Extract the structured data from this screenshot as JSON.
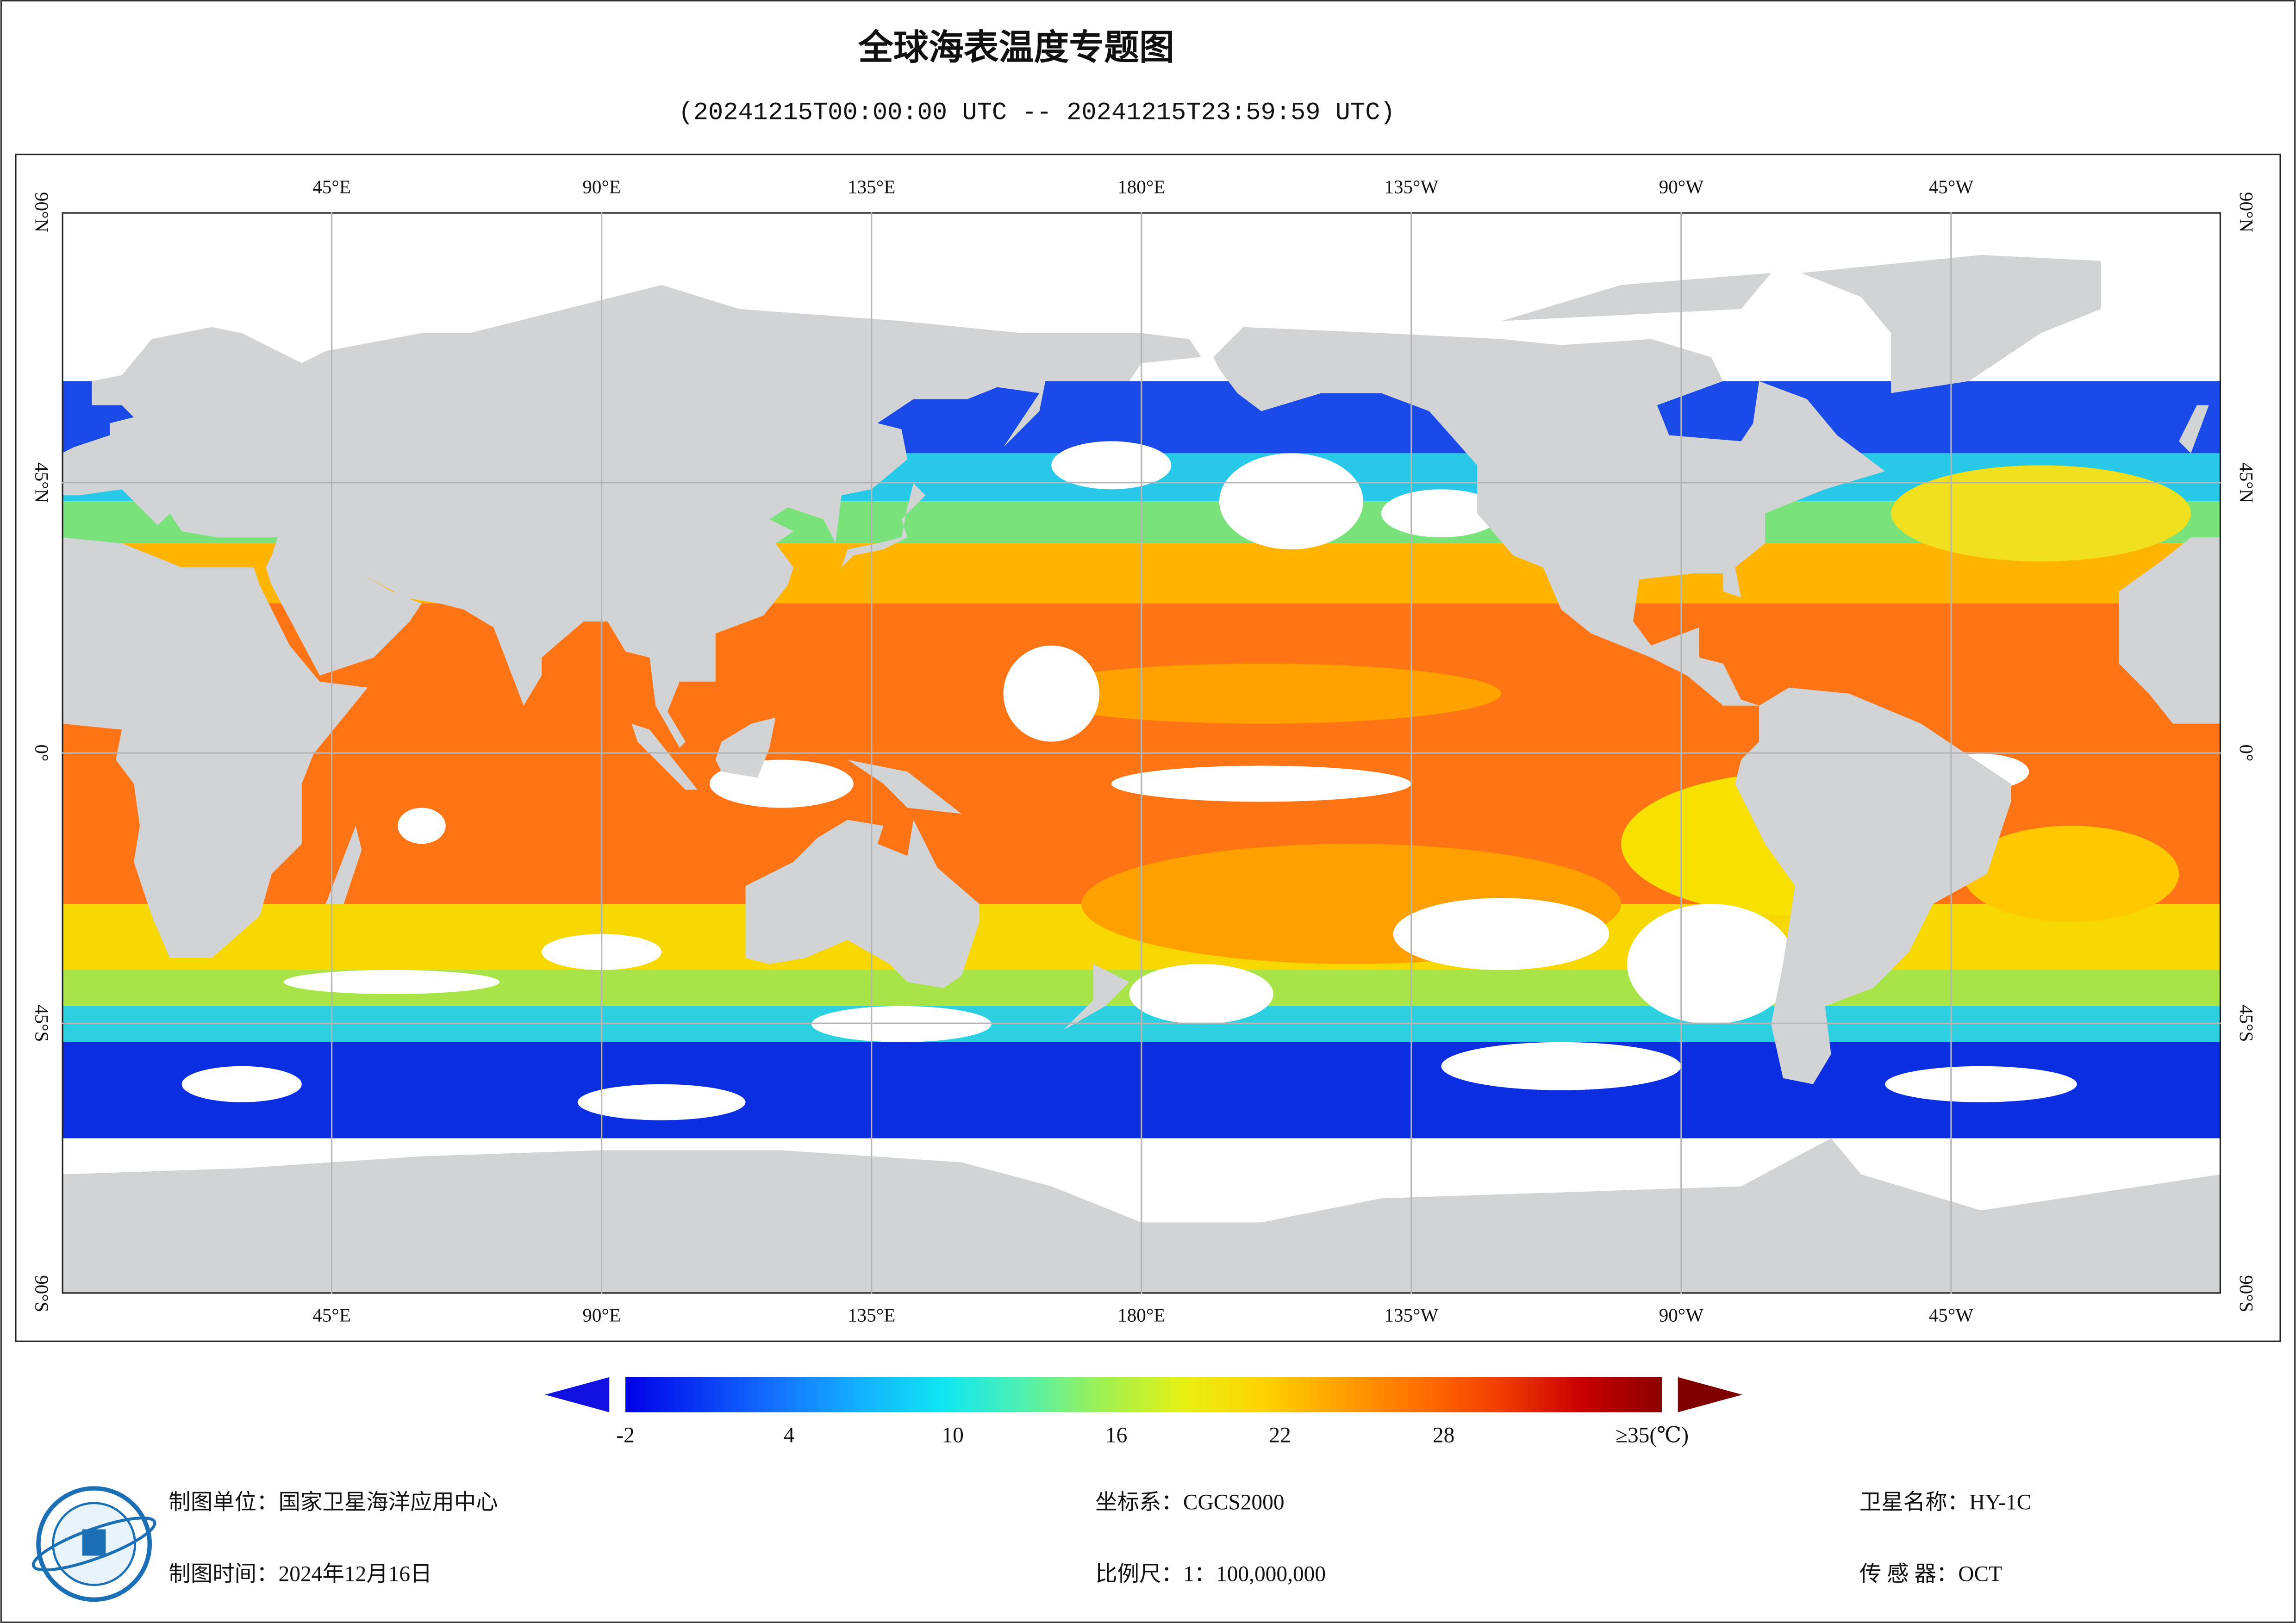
{
  "title": "全球海表温度专题图",
  "subtitle": "(20241215T00:00:00 UTC -- 20241215T23:59:59 UTC)",
  "map": {
    "lon_labels": [
      "45°E",
      "90°E",
      "135°E",
      "180°E",
      "135°W",
      "90°W",
      "45°W"
    ],
    "lat_labels": [
      "90°N",
      "45°N",
      "0°",
      "45°S",
      "90°S"
    ]
  },
  "colorbar": {
    "lim": [
      -2,
      36
    ],
    "ticks": [
      -2,
      4,
      10,
      16,
      22,
      28,
      {
        "value": 35,
        "label": "≥35(℃)"
      }
    ],
    "colors": [
      "#0000e6",
      "#0a3cf5",
      "#1478ff",
      "#14b4ff",
      "#10e6f0",
      "#50f0b0",
      "#a0f050",
      "#e6f014",
      "#ffd200",
      "#ffa000",
      "#ff6e00",
      "#f03c00",
      "#c80000",
      "#8c0000"
    ],
    "under_color": "#1010e0",
    "over_color": "#800000"
  },
  "footer": {
    "producer": "制图单位：国家卫星海洋应用中心",
    "date": "制图时间：2024年12月16日",
    "crs": "坐标系：CGCS2000",
    "scale": "比例尺：1：100,000,000",
    "satellite": "卫星名称：HY-1C",
    "sensor": "传 感 器：OCT"
  }
}
